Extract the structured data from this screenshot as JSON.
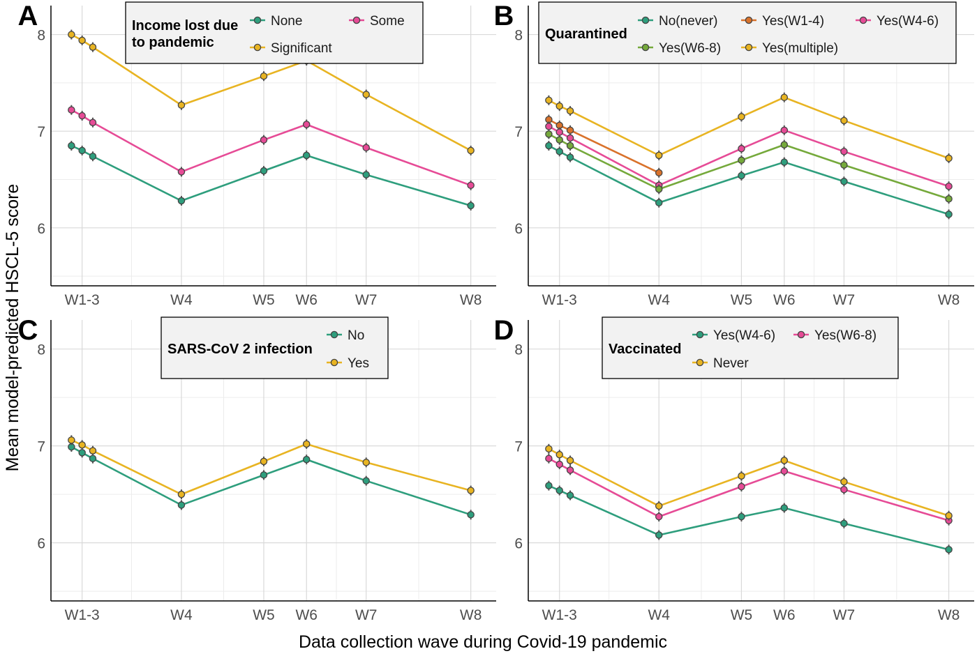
{
  "figure": {
    "ylabel": "Mean model-predicted HSCL-5 score",
    "xlabel": "Data collection wave during Covid-19 pandemic"
  },
  "chart_data": [
    {
      "panel": "A",
      "type": "line",
      "legend_title_lines": [
        "Income lost due",
        "to pandemic"
      ],
      "legend_placement": "top-center",
      "x_ticks": [
        "W1-3",
        "W4",
        "W5",
        "W6",
        "W7",
        "W8"
      ],
      "y_ticks": [
        6,
        7,
        8
      ],
      "ylim": [
        5.4,
        8.3
      ],
      "series": [
        {
          "name": "None",
          "color": "#2e9e7d",
          "values": [
            6.85,
            6.8,
            6.74,
            6.28,
            6.59,
            6.75,
            6.55,
            6.23
          ]
        },
        {
          "name": "Some",
          "color": "#e64b96",
          "values": [
            7.22,
            7.16,
            7.09,
            6.58,
            6.91,
            7.07,
            6.83,
            6.44
          ]
        },
        {
          "name": "Significant",
          "color": "#e8b422",
          "values": [
            8.0,
            7.94,
            7.87,
            7.27,
            7.57,
            7.73,
            7.38,
            6.8
          ]
        }
      ]
    },
    {
      "panel": "B",
      "type": "line",
      "legend_title_lines": [
        "Quarantined"
      ],
      "legend_placement": "top-center",
      "x_ticks": [
        "W1-3",
        "W4",
        "W5",
        "W6",
        "W7",
        "W8"
      ],
      "y_ticks": [
        6,
        7,
        8
      ],
      "ylim": [
        5.4,
        8.3
      ],
      "series": [
        {
          "name": "No(never)",
          "color": "#2e9e7d",
          "values": [
            6.85,
            6.79,
            6.73,
            6.26,
            6.54,
            6.68,
            6.48,
            6.14
          ]
        },
        {
          "name": "Yes(W1-4)",
          "color": "#d9722b",
          "values": [
            7.12,
            7.06,
            7.01,
            6.57,
            null,
            null,
            null,
            null
          ]
        },
        {
          "name": "Yes(W4-6)",
          "color": "#e64b96",
          "values": [
            7.05,
            6.99,
            6.93,
            6.44,
            6.82,
            7.01,
            6.79,
            6.43
          ]
        },
        {
          "name": "Yes(W6-8)",
          "color": "#75a93b",
          "values": [
            6.97,
            6.91,
            6.85,
            6.4,
            6.7,
            6.86,
            6.65,
            6.3
          ]
        },
        {
          "name": "Yes(multiple)",
          "color": "#e8b422",
          "values": [
            7.32,
            7.26,
            7.21,
            6.75,
            7.15,
            7.35,
            7.11,
            6.72
          ]
        }
      ]
    },
    {
      "panel": "C",
      "type": "line",
      "legend_title_lines": [
        "SARS-CoV 2 infection"
      ],
      "legend_placement": "top-center",
      "x_ticks": [
        "W1-3",
        "W4",
        "W5",
        "W6",
        "W7",
        "W8"
      ],
      "y_ticks": [
        6,
        7,
        8
      ],
      "ylim": [
        5.4,
        8.3
      ],
      "series": [
        {
          "name": "No",
          "color": "#2e9e7d",
          "values": [
            6.99,
            6.93,
            6.87,
            6.39,
            6.7,
            6.86,
            6.64,
            6.29
          ]
        },
        {
          "name": "Yes",
          "color": "#e8b422",
          "values": [
            7.06,
            7.01,
            6.95,
            6.5,
            6.84,
            7.02,
            6.83,
            6.54
          ]
        }
      ]
    },
    {
      "panel": "D",
      "type": "line",
      "legend_title_lines": [
        "Vaccinated"
      ],
      "legend_placement": "top-center",
      "x_ticks": [
        "W1-3",
        "W4",
        "W5",
        "W6",
        "W7",
        "W8"
      ],
      "y_ticks": [
        6,
        7,
        8
      ],
      "ylim": [
        5.4,
        8.3
      ],
      "series": [
        {
          "name": "Yes(W4-6)",
          "color": "#2e9e7d",
          "values": [
            6.59,
            6.54,
            6.49,
            6.08,
            6.27,
            6.36,
            6.2,
            5.93
          ]
        },
        {
          "name": "Yes(W6-8)",
          "color": "#e64b96",
          "values": [
            6.87,
            6.81,
            6.75,
            6.27,
            6.58,
            6.74,
            6.55,
            6.23
          ]
        },
        {
          "name": "Never",
          "color": "#e8b422",
          "values": [
            6.97,
            6.91,
            6.85,
            6.38,
            6.69,
            6.85,
            6.63,
            6.28
          ]
        }
      ]
    }
  ]
}
